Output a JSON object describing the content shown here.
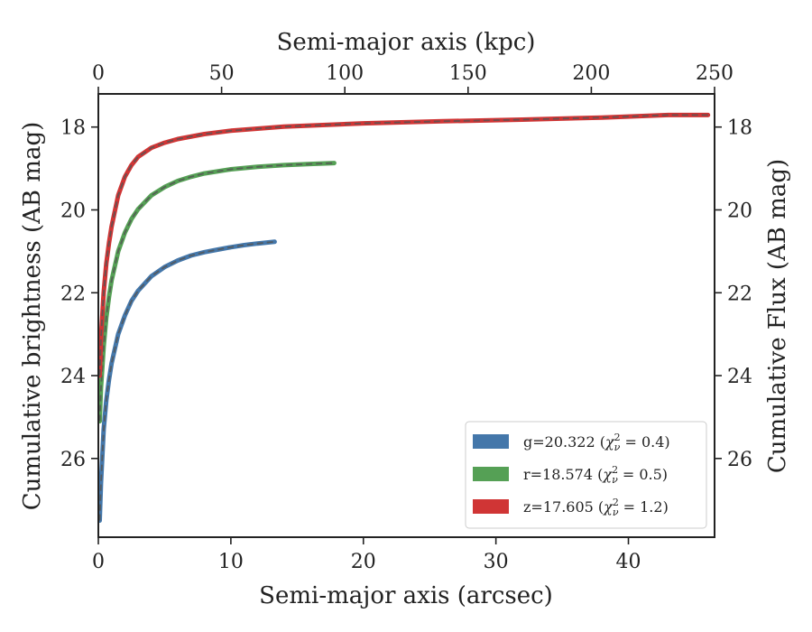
{
  "chart_data": {
    "type": "line",
    "xlabel": "Semi-major axis (arcsec)",
    "ylabel": "Cumulative brightness (AB mag)",
    "x2label": "Semi-major axis (kpc)",
    "y2label": "Cumulative Flux (AB mag)",
    "xlim": [
      0,
      46.5
    ],
    "ylim": [
      27.9,
      17.2
    ],
    "x2lim": [
      0,
      250
    ],
    "y_inverted": true,
    "x_ticks": [
      0,
      10,
      20,
      30,
      40
    ],
    "x2_ticks": [
      0,
      50,
      100,
      150,
      200,
      250
    ],
    "y_ticks": [
      18,
      20,
      22,
      24,
      26
    ],
    "grid": false,
    "legend_position": "lower-right",
    "series": [
      {
        "key": "g",
        "legend_label": "g=20.322 (",
        "legend_chi": "0.4",
        "color": "#4477aa",
        "fit_color": "#555555",
        "x": [
          0.1,
          0.2,
          0.4,
          0.6,
          0.8,
          1.0,
          1.5,
          2.0,
          2.5,
          3.0,
          4.0,
          5.0,
          6.0,
          7.0,
          8.0,
          9.0,
          10.0,
          11.0,
          12.0,
          13.3
        ],
        "y": [
          27.5,
          26.6,
          25.3,
          24.6,
          24.1,
          23.7,
          23.0,
          22.55,
          22.2,
          21.95,
          21.6,
          21.38,
          21.22,
          21.1,
          21.02,
          20.96,
          20.9,
          20.85,
          20.81,
          20.77
        ]
      },
      {
        "key": "r",
        "legend_label": "r=18.574 (",
        "legend_chi": "0.5",
        "color": "#55a055",
        "fit_color": "#555555",
        "x": [
          0.1,
          0.2,
          0.4,
          0.6,
          0.8,
          1.0,
          1.5,
          2.0,
          2.5,
          3.0,
          4.0,
          5.0,
          6.0,
          7.0,
          8.0,
          10.0,
          12.0,
          14.0,
          16.0,
          17.8
        ],
        "y": [
          25.1,
          24.3,
          23.3,
          22.6,
          22.1,
          21.7,
          21.0,
          20.55,
          20.22,
          19.98,
          19.65,
          19.45,
          19.3,
          19.2,
          19.12,
          19.02,
          18.96,
          18.92,
          18.89,
          18.87
        ]
      },
      {
        "key": "z",
        "legend_label": "z=17.605 (",
        "legend_chi": "1.2",
        "color": "#d03535",
        "fit_color": "#555555",
        "x": [
          0.1,
          0.2,
          0.4,
          0.6,
          0.8,
          1.0,
          1.5,
          2.0,
          2.5,
          3.0,
          4.0,
          5.0,
          6.0,
          8.0,
          10.0,
          14.0,
          20.0,
          26.0,
          32.0,
          38.0,
          43.0,
          46.0
        ],
        "y": [
          24.0,
          23.1,
          22.0,
          21.3,
          20.8,
          20.4,
          19.65,
          19.2,
          18.92,
          18.72,
          18.5,
          18.38,
          18.29,
          18.17,
          18.09,
          17.99,
          17.91,
          17.86,
          17.82,
          17.77,
          17.71,
          17.71
        ]
      }
    ]
  }
}
